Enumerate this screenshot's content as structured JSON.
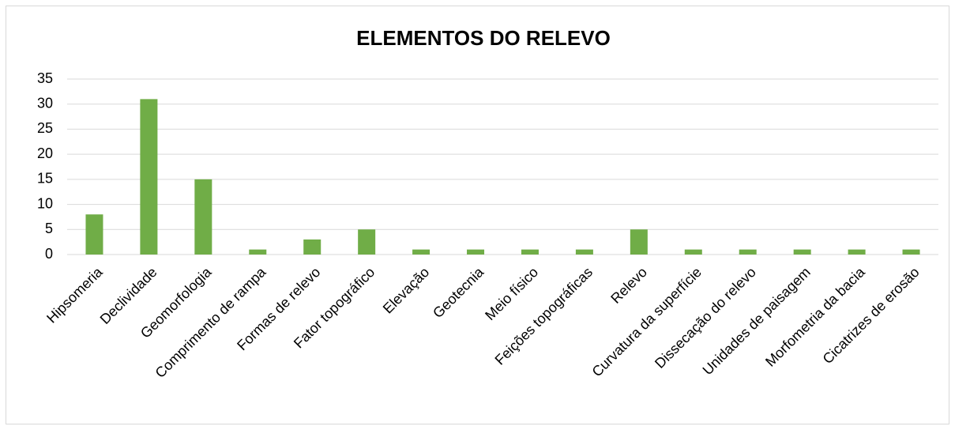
{
  "chart_data": {
    "type": "bar",
    "title": "ELEMENTOS DO RELEVO",
    "categories": [
      "Hipsomeria",
      "Declividade",
      "Geomorfologia",
      "Comprimento de rampa",
      "Formas de relevo",
      "Fator topográfico",
      "Elevação",
      "Geotecnia",
      "Meio físico",
      "Feições topográficas",
      "Relevo",
      "Curvatura da superfície",
      "Dissecação do relevo",
      "Unidades de paisagem",
      "Morfometria da bacia",
      "Cicatrizes de erosão"
    ],
    "values": [
      8,
      31,
      15,
      1,
      3,
      5,
      1,
      1,
      1,
      1,
      5,
      1,
      1,
      1,
      1,
      1
    ],
    "color": "#70ad47",
    "ylim": [
      0,
      35
    ],
    "yticks": [
      0,
      5,
      10,
      15,
      20,
      25,
      30,
      35
    ],
    "grid": true
  }
}
